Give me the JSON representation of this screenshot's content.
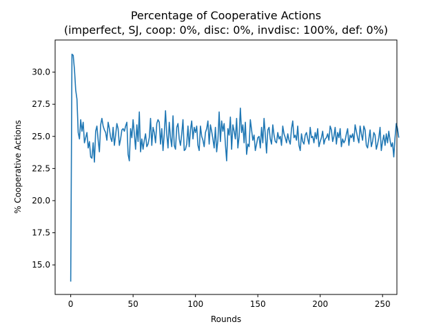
{
  "chart_data": {
    "type": "line",
    "title": "Percentage of Cooperative Actions",
    "subtitle": "(imperfect, SJ, coop: 0%, disc: 0%, invdisc: 100%, def: 0%)",
    "xlabel": "Rounds",
    "ylabel": "% Cooperative Actions",
    "xlim": [
      -12.5,
      261.5
    ],
    "ylim": [
      12.7,
      32.5
    ],
    "xticks": [
      0,
      50,
      100,
      150,
      200,
      250
    ],
    "yticks": [
      15.0,
      17.5,
      20.0,
      22.5,
      25.0,
      27.5,
      30.0
    ],
    "xtick_labels": [
      "0",
      "50",
      "100",
      "150",
      "200",
      "250"
    ],
    "ytick_labels": [
      "15.0",
      "17.5",
      "20.0",
      "22.5",
      "25.0",
      "27.5",
      "30.0"
    ],
    "grid": false,
    "line_color": "#1f77b4",
    "series": [
      {
        "values": [
          13.7,
          31.4,
          31.3,
          30.2,
          28.6,
          27.9,
          25.3,
          24.8,
          26.3,
          25.4,
          26.1,
          24.5,
          24.9,
          25.3,
          24.1,
          24.6,
          23.4,
          23.3,
          24.5,
          23.0,
          25.4,
          25.8,
          24.7,
          23.8,
          25.9,
          26.4,
          25.8,
          25.5,
          25.3,
          24.7,
          26.1,
          25.6,
          24.9,
          24.6,
          25.7,
          24.3,
          25.1,
          26.0,
          25.6,
          24.3,
          24.8,
          25.5,
          25.6,
          25.4,
          25.8,
          26.1,
          23.6,
          23.1,
          25.6,
          24.9,
          26.3,
          25.2,
          24.0,
          25.9,
          24.6,
          26.9,
          23.8,
          24.8,
          24.0,
          24.7,
          25.2,
          24.2,
          24.4,
          24.9,
          26.4,
          24.3,
          25.7,
          25.3,
          24.5,
          26.0,
          26.3,
          26.1,
          24.4,
          25.6,
          23.9,
          25.2,
          27.0,
          25.2,
          24.1,
          26.1,
          24.9,
          24.2,
          26.6,
          24.3,
          24.0,
          25.7,
          26.0,
          24.8,
          24.3,
          25.2,
          26.3,
          23.9,
          24.0,
          24.4,
          25.8,
          24.2,
          25.5,
          26.2,
          24.8,
          25.7,
          25.3,
          25.8,
          24.3,
          23.9,
          25.8,
          25.0,
          24.7,
          24.2,
          25.3,
          25.6,
          26.2,
          24.4,
          25.9,
          25.4,
          24.8,
          24.1,
          25.7,
          23.8,
          24.7,
          26.9,
          24.6,
          26.2,
          25.4,
          26.0,
          24.4,
          23.1,
          25.6,
          25.1,
          26.5,
          24.0,
          25.9,
          25.4,
          24.8,
          26.4,
          24.1,
          25.0,
          27.2,
          25.3,
          25.9,
          24.5,
          26.1,
          23.6,
          24.4,
          24.2,
          26.3,
          25.5,
          24.7,
          25.1,
          23.9,
          24.4,
          24.9,
          25.0,
          24.1,
          25.7,
          24.5,
          26.4,
          25.1,
          23.7,
          25.5,
          25.7,
          24.8,
          24.4,
          25.9,
          25.1,
          24.6,
          24.5,
          25.3,
          24.8,
          25.0,
          24.3,
          25.8,
          25.2,
          24.9,
          24.5,
          25.2,
          24.7,
          24.4,
          25.6,
          26.2,
          24.9,
          25.1,
          24.7,
          25.8,
          24.3,
          23.9,
          25.2,
          24.6,
          24.4,
          25.1,
          25.3,
          24.8,
          24.4,
          25.7,
          24.9,
          25.0,
          24.5,
          25.3,
          24.8,
          25.6,
          24.2,
          24.6,
          24.9,
          25.4,
          24.4,
          24.8,
          24.9,
          25.2,
          24.7,
          25.8,
          25.5,
          24.6,
          25.0,
          25.7,
          24.4,
          25.3,
          24.9,
          25.6,
          24.2,
          24.8,
          24.5,
          24.7,
          25.2,
          25.6,
          24.3,
          25.1,
          24.9,
          25.2,
          24.6,
          25.9,
          25.4,
          24.9,
          24.5,
          25.8,
          25.2,
          24.7,
          25.8,
          25.5,
          24.3,
          24.1,
          24.8,
          25.5,
          24.2,
          24.6,
          25.3,
          25.1,
          24.0,
          24.4,
          24.9,
          25.7,
          23.9,
          24.6,
          25.1,
          24.3,
          25.2,
          24.5,
          25.4,
          24.7,
          24.2,
          24.5,
          23.4,
          24.9,
          26.0,
          25.6,
          24.9
        ]
      }
    ]
  }
}
